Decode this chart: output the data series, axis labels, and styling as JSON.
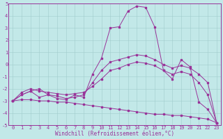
{
  "xlabel": "Windchill (Refroidissement éolien,°C)",
  "xlim": [
    -0.5,
    23.5
  ],
  "ylim": [
    -5,
    5
  ],
  "xticks": [
    0,
    1,
    2,
    3,
    4,
    5,
    6,
    7,
    8,
    9,
    10,
    11,
    12,
    13,
    14,
    15,
    16,
    17,
    18,
    19,
    20,
    21,
    22,
    23
  ],
  "yticks": [
    -5,
    -4,
    -3,
    -2,
    -1,
    0,
    1,
    2,
    3,
    4,
    5
  ],
  "bg_color": "#c2e8e8",
  "line_color": "#993399",
  "grid_color": "#a0cccc",
  "lines": [
    [
      -3.0,
      -2.5,
      -2.2,
      -2.7,
      -2.5,
      -2.8,
      -2.9,
      -2.5,
      -2.7,
      -0.8,
      0.5,
      3.0,
      3.1,
      4.4,
      4.8,
      4.7,
      3.1,
      -0.5,
      -1.2,
      0.4,
      -0.2,
      -3.1,
      -3.7,
      -4.8
    ],
    [
      -3.0,
      -2.5,
      -2.2,
      -2.0,
      -2.5,
      -2.6,
      -2.8,
      -2.7,
      -2.5,
      -1.5,
      -0.5,
      0.2,
      0.4,
      0.6,
      0.8,
      0.7,
      0.4,
      0.0,
      -0.3,
      -0.1,
      -0.3,
      -0.8,
      -1.5,
      -4.8
    ],
    [
      -3.0,
      -2.3,
      -2.0,
      -2.2,
      -2.3,
      -2.4,
      -2.5,
      -2.4,
      -2.3,
      -1.8,
      -1.2,
      -0.5,
      -0.3,
      0.0,
      0.2,
      0.1,
      -0.1,
      -0.5,
      -0.8,
      -0.6,
      -0.8,
      -1.5,
      -2.5,
      -4.8
    ],
    [
      -3.0,
      -2.9,
      -2.9,
      -3.0,
      -3.0,
      -3.1,
      -3.1,
      -3.2,
      -3.3,
      -3.4,
      -3.5,
      -3.6,
      -3.7,
      -3.8,
      -3.9,
      -4.0,
      -4.1,
      -4.1,
      -4.2,
      -4.2,
      -4.3,
      -4.4,
      -4.5,
      -4.8
    ]
  ],
  "tick_fontsize": 5.0,
  "xlabel_fontsize": 5.5,
  "marker_size": 1.8,
  "linewidth": 0.7
}
